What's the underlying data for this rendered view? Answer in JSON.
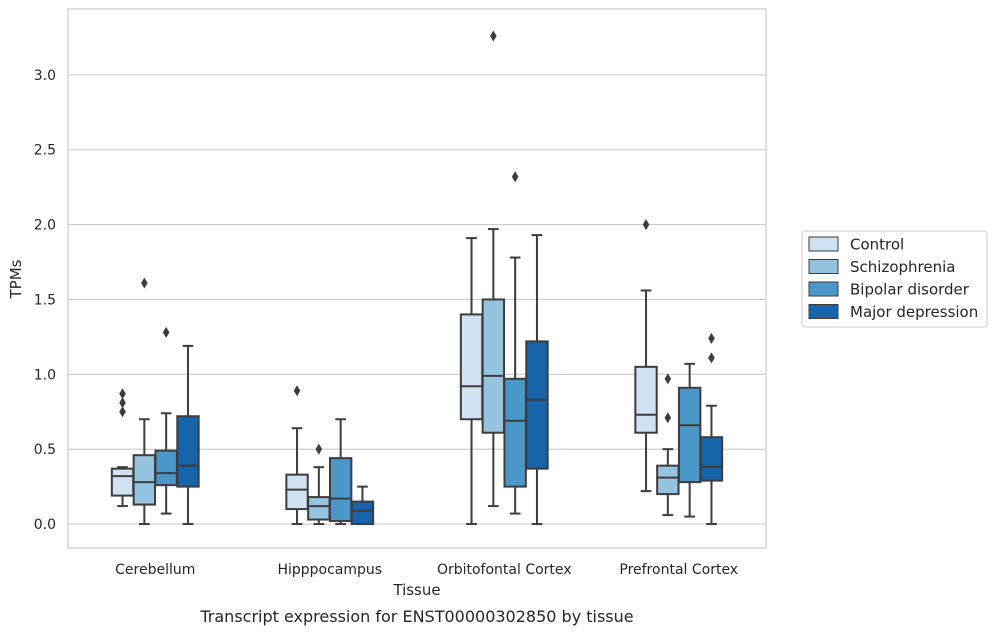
{
  "chart_data": {
    "type": "boxplot",
    "caption": "Transcript expression for ENST00000302850 by tissue",
    "xlabel": "Tissue",
    "ylabel": "TPMs",
    "ylim": [
      -0.16,
      3.44
    ],
    "yticks": [
      0.0,
      0.5,
      1.0,
      1.5,
      2.0,
      2.5,
      3.0
    ],
    "ytick_labels": [
      "0.0",
      "0.5",
      "1.0",
      "1.5",
      "2.0",
      "2.5",
      "3.0"
    ],
    "categories": [
      "Cerebellum",
      "Hipppocampus",
      "Orbitofontal Cortex",
      "Prefrontal Cortex"
    ],
    "grid": "horizontal",
    "legend_position": "right",
    "series": [
      {
        "name": "Control",
        "color": "#d0e1f2",
        "boxes": [
          {
            "whislo": 0.12,
            "q1": 0.19,
            "med": 0.32,
            "q3": 0.37,
            "whishi": 0.38,
            "fliers": [
              0.75,
              0.81,
              0.87
            ]
          },
          {
            "whislo": 0.0,
            "q1": 0.1,
            "med": 0.23,
            "q3": 0.33,
            "whishi": 0.64,
            "fliers": [
              0.89
            ]
          },
          {
            "whislo": 0.0,
            "q1": 0.7,
            "med": 0.92,
            "q3": 1.4,
            "whishi": 1.91,
            "fliers": []
          },
          {
            "whislo": 0.22,
            "q1": 0.61,
            "med": 0.73,
            "q3": 1.05,
            "whishi": 1.56,
            "fliers": [
              2.0
            ]
          }
        ]
      },
      {
        "name": "Schizophrenia",
        "color": "#94c4df",
        "boxes": [
          {
            "whislo": 0.0,
            "q1": 0.13,
            "med": 0.28,
            "q3": 0.46,
            "whishi": 0.7,
            "fliers": [
              1.61
            ]
          },
          {
            "whislo": 0.0,
            "q1": 0.03,
            "med": 0.12,
            "q3": 0.18,
            "whishi": 0.38,
            "fliers": [
              0.5
            ]
          },
          {
            "whislo": 0.12,
            "q1": 0.61,
            "med": 0.99,
            "q3": 1.5,
            "whishi": 1.97,
            "fliers": [
              3.26
            ]
          },
          {
            "whislo": 0.06,
            "q1": 0.2,
            "med": 0.31,
            "q3": 0.39,
            "whishi": 0.5,
            "fliers": [
              0.71,
              0.97
            ]
          }
        ]
      },
      {
        "name": "Bipolar disorder",
        "color": "#4a98c9",
        "boxes": [
          {
            "whislo": 0.07,
            "q1": 0.26,
            "med": 0.34,
            "q3": 0.49,
            "whishi": 0.74,
            "fliers": [
              1.28
            ]
          },
          {
            "whislo": 0.0,
            "q1": 0.02,
            "med": 0.17,
            "q3": 0.44,
            "whishi": 0.7,
            "fliers": []
          },
          {
            "whislo": 0.07,
            "q1": 0.25,
            "med": 0.69,
            "q3": 0.97,
            "whishi": 1.78,
            "fliers": [
              2.32
            ]
          },
          {
            "whislo": 0.05,
            "q1": 0.28,
            "med": 0.66,
            "q3": 0.91,
            "whishi": 1.07,
            "fliers": []
          }
        ]
      },
      {
        "name": "Major depression",
        "color": "#1764ab",
        "boxes": [
          {
            "whislo": 0.0,
            "q1": 0.25,
            "med": 0.39,
            "q3": 0.72,
            "whishi": 1.19,
            "fliers": []
          },
          {
            "whislo": 0.0,
            "q1": 0.0,
            "med": 0.09,
            "q3": 0.15,
            "whishi": 0.25,
            "fliers": []
          },
          {
            "whislo": 0.0,
            "q1": 0.37,
            "med": 0.83,
            "q3": 1.22,
            "whishi": 1.93,
            "fliers": []
          },
          {
            "whislo": 0.0,
            "q1": 0.29,
            "med": 0.38,
            "q3": 0.58,
            "whishi": 0.79,
            "fliers": [
              1.11,
              1.24
            ]
          }
        ]
      }
    ]
  }
}
